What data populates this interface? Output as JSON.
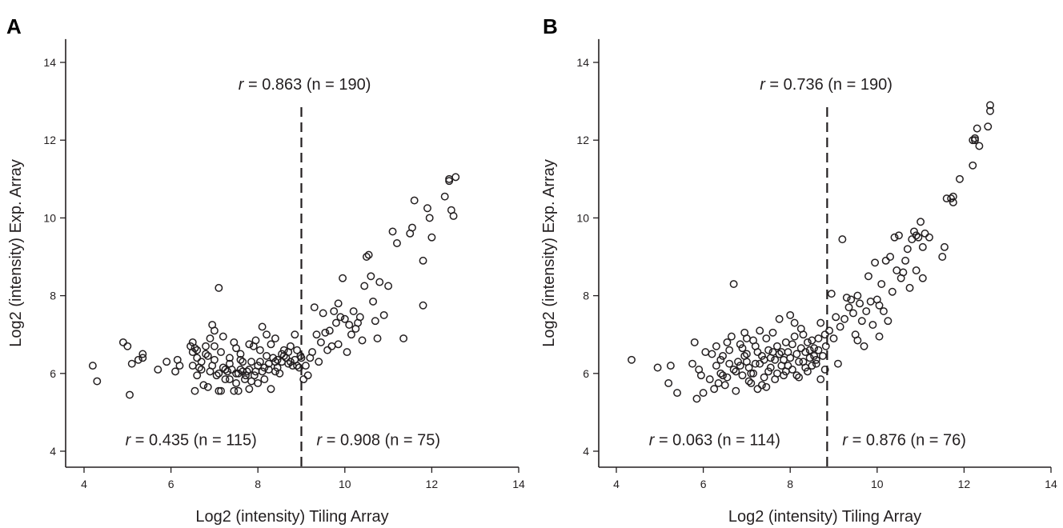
{
  "chart_data": [
    {
      "type": "scatter",
      "panel_label": "A",
      "xlabel": "Log2 (intensity) Tiling Array",
      "ylabel": "Log2 (intensity) Exp. Array",
      "xlim": [
        3.6,
        14.0
      ],
      "ylim": [
        3.6,
        14.6
      ],
      "xticks": [
        4,
        6,
        8,
        10,
        12,
        14
      ],
      "yticks": [
        4,
        6,
        8,
        10,
        12,
        14
      ],
      "grid": false,
      "threshold_x": 9.0,
      "annotations": [
        {
          "italic": "r",
          "text": " = 0.863 (n = 190)",
          "x": 7.55,
          "y": 13.3
        },
        {
          "italic": "r",
          "text": " = 0.435 (n = 115)",
          "x": 4.95,
          "y": 4.15
        },
        {
          "italic": "r",
          "text": " = 0.908 (n = 75)",
          "x": 9.35,
          "y": 4.15
        }
      ],
      "points": [
        [
          4.2,
          6.2
        ],
        [
          4.3,
          5.8
        ],
        [
          4.9,
          6.8
        ],
        [
          5.0,
          6.7
        ],
        [
          5.05,
          5.45
        ],
        [
          5.1,
          6.25
        ],
        [
          5.25,
          6.35
        ],
        [
          5.35,
          6.5
        ],
        [
          5.35,
          6.4
        ],
        [
          5.7,
          6.1
        ],
        [
          5.9,
          6.3
        ],
        [
          6.1,
          6.05
        ],
        [
          6.15,
          6.35
        ],
        [
          6.2,
          6.2
        ],
        [
          6.45,
          6.7
        ],
        [
          6.5,
          6.55
        ],
        [
          6.5,
          6.8
        ],
        [
          6.55,
          5.55
        ],
        [
          6.6,
          6.6
        ],
        [
          6.6,
          6.4
        ],
        [
          6.65,
          6.15
        ],
        [
          6.7,
          6.1
        ],
        [
          6.75,
          5.7
        ],
        [
          6.8,
          6.5
        ],
        [
          6.85,
          6.45
        ],
        [
          6.9,
          6.9
        ],
        [
          6.95,
          7.25
        ],
        [
          6.95,
          6.2
        ],
        [
          7.0,
          6.7
        ],
        [
          7.0,
          7.1
        ],
        [
          7.05,
          5.95
        ],
        [
          7.1,
          6.0
        ],
        [
          7.1,
          5.55
        ],
        [
          7.15,
          5.55
        ],
        [
          7.15,
          6.55
        ],
        [
          7.2,
          6.15
        ],
        [
          7.25,
          6.1
        ],
        [
          7.3,
          6.05
        ],
        [
          7.35,
          5.85
        ],
        [
          7.4,
          6.1
        ],
        [
          7.1,
          8.2
        ],
        [
          7.45,
          5.55
        ],
        [
          7.5,
          5.75
        ],
        [
          7.5,
          6.65
        ],
        [
          7.55,
          6.0
        ],
        [
          7.55,
          5.55
        ],
        [
          7.6,
          6.35
        ],
        [
          7.6,
          6.5
        ],
        [
          7.65,
          6.05
        ],
        [
          7.7,
          5.85
        ],
        [
          7.72,
          5.95
        ],
        [
          7.75,
          6.05
        ],
        [
          7.8,
          6.1
        ],
        [
          7.8,
          5.6
        ],
        [
          7.85,
          6.3
        ],
        [
          7.9,
          6.7
        ],
        [
          7.92,
          5.95
        ],
        [
          7.95,
          6.85
        ],
        [
          8.0,
          6.2
        ],
        [
          8.0,
          5.75
        ],
        [
          8.05,
          6.3
        ],
        [
          8.1,
          6.05
        ],
        [
          8.1,
          7.2
        ],
        [
          8.15,
          6.15
        ],
        [
          8.2,
          6.45
        ],
        [
          8.25,
          6.25
        ],
        [
          8.3,
          5.6
        ],
        [
          8.3,
          6.75
        ],
        [
          8.35,
          6.4
        ],
        [
          8.4,
          6.3
        ],
        [
          8.45,
          6.35
        ],
        [
          8.5,
          6.0
        ],
        [
          8.55,
          6.3
        ],
        [
          8.6,
          6.45
        ],
        [
          8.65,
          6.4
        ],
        [
          8.7,
          6.55
        ],
        [
          8.75,
          6.3
        ],
        [
          8.8,
          6.2
        ],
        [
          8.85,
          6.35
        ],
        [
          8.9,
          6.6
        ],
        [
          8.95,
          6.15
        ],
        [
          8.4,
          6.9
        ],
        [
          8.55,
          6.5
        ],
        [
          8.7,
          6.25
        ],
        [
          8.85,
          7.0
        ],
        [
          8.98,
          6.45
        ],
        [
          7.35,
          6.4
        ],
        [
          7.8,
          6.75
        ],
        [
          6.9,
          6.05
        ],
        [
          7.25,
          5.85
        ],
        [
          7.65,
          6.3
        ],
        [
          6.6,
          5.95
        ],
        [
          8.2,
          7.0
        ],
        [
          7.45,
          6.8
        ],
        [
          6.8,
          6.7
        ],
        [
          6.5,
          6.2
        ],
        [
          8.05,
          6.6
        ],
        [
          7.95,
          6.05
        ],
        [
          7.5,
          6.0
        ],
        [
          8.25,
          6.1
        ],
        [
          6.7,
          6.3
        ],
        [
          7.0,
          6.35
        ],
        [
          7.6,
          6.1
        ],
        [
          8.4,
          6.05
        ],
        [
          8.6,
          6.6
        ],
        [
          8.9,
          6.2
        ],
        [
          7.2,
          6.95
        ],
        [
          6.85,
          5.65
        ],
        [
          8.15,
          5.85
        ],
        [
          7.35,
          6.25
        ],
        [
          8.75,
          6.7
        ],
        [
          6.55,
          6.65
        ],
        [
          7.85,
          5.8
        ],
        [
          8.45,
          6.15
        ],
        [
          9.0,
          6.4
        ],
        [
          9.05,
          5.85
        ],
        [
          9.1,
          6.2
        ],
        [
          9.15,
          5.95
        ],
        [
          9.2,
          6.4
        ],
        [
          9.3,
          7.7
        ],
        [
          9.35,
          7.0
        ],
        [
          9.45,
          6.8
        ],
        [
          9.5,
          7.55
        ],
        [
          9.55,
          7.05
        ],
        [
          9.6,
          6.6
        ],
        [
          9.65,
          7.1
        ],
        [
          9.7,
          6.7
        ],
        [
          9.75,
          7.6
        ],
        [
          9.8,
          7.3
        ],
        [
          9.85,
          7.8
        ],
        [
          9.9,
          7.45
        ],
        [
          9.95,
          8.45
        ],
        [
          10.0,
          7.4
        ],
        [
          10.05,
          6.55
        ],
        [
          10.1,
          7.25
        ],
        [
          10.15,
          7.0
        ],
        [
          10.2,
          7.6
        ],
        [
          10.25,
          7.15
        ],
        [
          10.3,
          7.3
        ],
        [
          10.4,
          6.85
        ],
        [
          10.45,
          8.25
        ],
        [
          10.5,
          9.0
        ],
        [
          10.55,
          9.05
        ],
        [
          10.6,
          8.5
        ],
        [
          10.65,
          7.85
        ],
        [
          10.7,
          7.35
        ],
        [
          10.8,
          8.35
        ],
        [
          10.9,
          7.5
        ],
        [
          11.0,
          8.25
        ],
        [
          11.1,
          9.65
        ],
        [
          11.2,
          9.35
        ],
        [
          11.35,
          6.9
        ],
        [
          11.5,
          9.6
        ],
        [
          11.55,
          9.75
        ],
        [
          11.6,
          10.45
        ],
        [
          11.8,
          8.9
        ],
        [
          11.9,
          10.25
        ],
        [
          11.95,
          10.0
        ],
        [
          12.0,
          9.5
        ],
        [
          12.3,
          10.55
        ],
        [
          12.4,
          10.95
        ],
        [
          12.45,
          10.2
        ],
        [
          12.5,
          10.05
        ],
        [
          11.8,
          7.75
        ],
        [
          12.55,
          11.05
        ],
        [
          9.4,
          6.3
        ],
        [
          9.85,
          6.75
        ],
        [
          10.35,
          7.45
        ],
        [
          10.75,
          6.9
        ],
        [
          9.25,
          6.55
        ],
        [
          12.4,
          11.0
        ]
      ]
    },
    {
      "type": "scatter",
      "panel_label": "B",
      "xlabel": "Log2 (intensity) Tiling Array",
      "ylabel": "Log2 (intensity) Exp. Array",
      "xlim": [
        3.6,
        14.0
      ],
      "ylim": [
        3.6,
        14.6
      ],
      "xticks": [
        4,
        6,
        8,
        10,
        12,
        14
      ],
      "yticks": [
        4,
        6,
        8,
        10,
        12,
        14
      ],
      "grid": false,
      "threshold_x": 8.85,
      "annotations": [
        {
          "italic": "r",
          "text": " = 0.736 (n = 190)",
          "x": 7.3,
          "y": 13.3
        },
        {
          "italic": "r",
          "text": " = 0.063 (n = 114)",
          "x": 4.75,
          "y": 4.15
        },
        {
          "italic": "r",
          "text": " = 0.876 (n = 76)",
          "x": 9.2,
          "y": 4.15
        }
      ],
      "points": [
        [
          4.35,
          6.35
        ],
        [
          4.95,
          6.15
        ],
        [
          5.2,
          5.75
        ],
        [
          5.25,
          6.2
        ],
        [
          5.4,
          5.5
        ],
        [
          5.75,
          6.25
        ],
        [
          5.8,
          6.8
        ],
        [
          5.85,
          5.35
        ],
        [
          5.9,
          6.1
        ],
        [
          6.0,
          5.5
        ],
        [
          6.05,
          6.55
        ],
        [
          6.15,
          5.85
        ],
        [
          6.3,
          6.2
        ],
        [
          6.35,
          5.75
        ],
        [
          6.4,
          6.0
        ],
        [
          6.45,
          6.45
        ],
        [
          6.55,
          5.9
        ],
        [
          6.6,
          6.6
        ],
        [
          6.65,
          6.95
        ],
        [
          6.7,
          6.1
        ],
        [
          6.7,
          8.3
        ],
        [
          6.75,
          5.55
        ],
        [
          6.8,
          6.3
        ],
        [
          6.85,
          6.75
        ],
        [
          6.9,
          5.95
        ],
        [
          6.95,
          7.05
        ],
        [
          7.0,
          6.5
        ],
        [
          7.05,
          5.8
        ],
        [
          7.1,
          6.0
        ],
        [
          7.15,
          6.85
        ],
        [
          7.2,
          6.25
        ],
        [
          7.25,
          5.6
        ],
        [
          7.3,
          7.1
        ],
        [
          7.35,
          6.45
        ],
        [
          7.4,
          5.9
        ],
        [
          7.45,
          5.65
        ],
        [
          7.5,
          6.6
        ],
        [
          7.55,
          6.15
        ],
        [
          7.6,
          7.05
        ],
        [
          7.65,
          6.35
        ],
        [
          7.7,
          6.0
        ],
        [
          7.75,
          7.4
        ],
        [
          7.8,
          6.55
        ],
        [
          7.85,
          5.95
        ],
        [
          7.9,
          6.8
        ],
        [
          7.95,
          6.2
        ],
        [
          8.0,
          7.5
        ],
        [
          8.05,
          6.1
        ],
        [
          8.1,
          7.3
        ],
        [
          8.15,
          6.5
        ],
        [
          8.2,
          5.9
        ],
        [
          8.25,
          6.65
        ],
        [
          8.3,
          6.3
        ],
        [
          8.35,
          6.55
        ],
        [
          8.4,
          6.8
        ],
        [
          8.45,
          6.4
        ],
        [
          8.5,
          6.2
        ],
        [
          8.55,
          6.65
        ],
        [
          8.6,
          6.25
        ],
        [
          8.65,
          6.9
        ],
        [
          8.7,
          5.85
        ],
        [
          8.75,
          6.45
        ],
        [
          8.8,
          7.0
        ],
        [
          8.82,
          6.7
        ],
        [
          6.2,
          6.5
        ],
        [
          6.5,
          5.7
        ],
        [
          7.0,
          6.9
        ],
        [
          7.3,
          6.25
        ],
        [
          7.7,
          6.7
        ],
        [
          8.0,
          6.4
        ],
        [
          6.85,
          6.2
        ],
        [
          7.45,
          6.9
        ],
        [
          8.3,
          7.0
        ],
        [
          6.4,
          6.35
        ],
        [
          7.1,
          5.75
        ],
        [
          7.9,
          6.05
        ],
        [
          8.5,
          6.85
        ],
        [
          6.9,
          6.65
        ],
        [
          7.55,
          6.4
        ],
        [
          8.2,
          6.3
        ],
        [
          5.95,
          5.95
        ],
        [
          6.6,
          6.25
        ],
        [
          7.25,
          6.55
        ],
        [
          7.85,
          6.35
        ],
        [
          8.4,
          6.05
        ],
        [
          8.7,
          7.3
        ],
        [
          6.25,
          5.6
        ],
        [
          7.05,
          6.15
        ],
        [
          7.65,
          5.85
        ],
        [
          8.1,
          6.95
        ],
        [
          8.6,
          6.35
        ],
        [
          6.75,
          6.05
        ],
        [
          7.35,
          5.7
        ],
        [
          7.95,
          6.55
        ],
        [
          8.45,
          6.6
        ],
        [
          8.8,
          6.1
        ],
        [
          7.2,
          6.7
        ],
        [
          6.55,
          6.8
        ],
        [
          7.8,
          6.2
        ],
        [
          8.25,
          7.15
        ],
        [
          6.45,
          5.95
        ],
        [
          7.0,
          6.3
        ],
        [
          7.5,
          6.05
        ],
        [
          8.05,
          6.75
        ],
        [
          8.55,
          6.45
        ],
        [
          6.3,
          6.7
        ],
        [
          7.4,
          6.35
        ],
        [
          8.35,
          6.15
        ],
        [
          6.95,
          6.45
        ],
        [
          7.15,
          6.0
        ],
        [
          7.75,
          6.5
        ],
        [
          8.65,
          6.6
        ],
        [
          8.15,
          5.95
        ],
        [
          7.6,
          6.55
        ],
        [
          8.9,
          7.1
        ],
        [
          8.95,
          8.05
        ],
        [
          9.0,
          6.9
        ],
        [
          9.05,
          7.45
        ],
        [
          9.1,
          6.25
        ],
        [
          9.15,
          7.2
        ],
        [
          9.2,
          9.45
        ],
        [
          9.3,
          7.95
        ],
        [
          9.35,
          7.7
        ],
        [
          9.4,
          7.9
        ],
        [
          9.45,
          7.55
        ],
        [
          9.5,
          7.0
        ],
        [
          9.55,
          6.85
        ],
        [
          9.6,
          7.8
        ],
        [
          9.65,
          7.35
        ],
        [
          9.7,
          6.7
        ],
        [
          9.75,
          7.6
        ],
        [
          9.8,
          8.5
        ],
        [
          9.85,
          7.85
        ],
        [
          9.9,
          7.25
        ],
        [
          9.95,
          8.85
        ],
        [
          10.0,
          7.9
        ],
        [
          10.05,
          6.95
        ],
        [
          10.1,
          8.3
        ],
        [
          10.15,
          7.6
        ],
        [
          10.2,
          8.9
        ],
        [
          10.25,
          7.35
        ],
        [
          10.3,
          9.0
        ],
        [
          10.35,
          8.1
        ],
        [
          10.4,
          9.5
        ],
        [
          10.45,
          8.65
        ],
        [
          10.5,
          9.55
        ],
        [
          10.55,
          8.45
        ],
        [
          10.6,
          8.6
        ],
        [
          10.65,
          8.9
        ],
        [
          10.7,
          9.2
        ],
        [
          10.75,
          8.2
        ],
        [
          10.8,
          9.45
        ],
        [
          10.85,
          9.65
        ],
        [
          10.9,
          8.65
        ],
        [
          10.95,
          9.5
        ],
        [
          11.0,
          9.9
        ],
        [
          11.05,
          9.25
        ],
        [
          11.1,
          9.6
        ],
        [
          11.2,
          9.5
        ],
        [
          11.5,
          9.0
        ],
        [
          11.55,
          9.25
        ],
        [
          11.6,
          10.5
        ],
        [
          11.7,
          10.5
        ],
        [
          11.75,
          10.4
        ],
        [
          11.9,
          11.0
        ],
        [
          12.2,
          12.0
        ],
        [
          12.25,
          12.05
        ],
        [
          12.3,
          12.3
        ],
        [
          12.35,
          11.85
        ],
        [
          12.55,
          12.35
        ],
        [
          12.6,
          12.75
        ],
        [
          12.6,
          12.9
        ],
        [
          12.2,
          11.35
        ],
        [
          11.75,
          10.55
        ],
        [
          12.25,
          12.0
        ],
        [
          9.25,
          7.4
        ],
        [
          9.55,
          8.0
        ],
        [
          10.05,
          7.75
        ],
        [
          10.9,
          9.55
        ],
        [
          11.05,
          8.45
        ]
      ]
    }
  ]
}
